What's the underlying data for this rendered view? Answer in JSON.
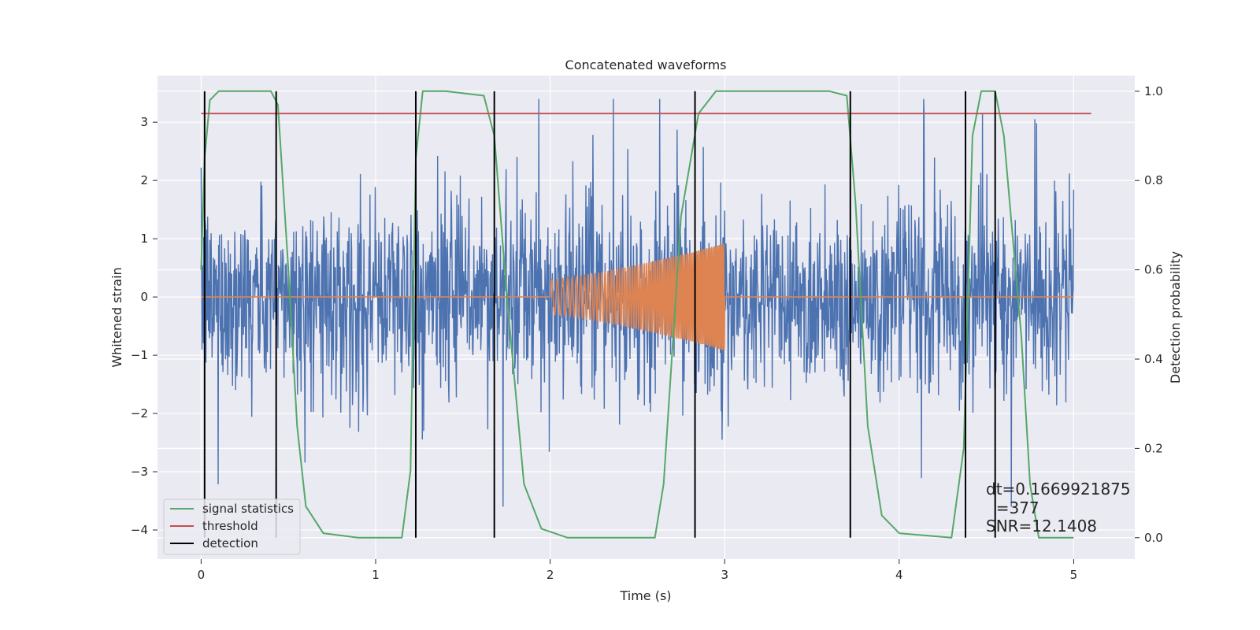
{
  "chart_data": {
    "type": "line",
    "title": "Concatenated waveforms",
    "xlabel": "Time (s)",
    "ylabel": "Whitened strain",
    "y2label": "Detection probability",
    "xlim": [
      -0.25,
      5.35
    ],
    "ylim": [
      -4.5,
      3.8
    ],
    "y2lim": [
      -0.048,
      1.035
    ],
    "xticks": [
      0,
      1,
      2,
      3,
      4,
      5
    ],
    "yticks": [
      -4,
      -3,
      -2,
      -1,
      0,
      1,
      2,
      3
    ],
    "y2ticks": [
      0.0,
      0.2,
      0.4,
      0.6,
      0.8,
      1.0
    ],
    "grid": true,
    "legend_position": "lower-left",
    "series": [
      {
        "name": "",
        "kind": "noise",
        "color": "#4c72b0",
        "x_range": [
          0,
          5
        ],
        "envelope_max": 3.4,
        "envelope_min": -3.6,
        "typical_range": [
          -1.3,
          1.3
        ]
      },
      {
        "name": "",
        "kind": "chirp",
        "color": "#dd8452",
        "x_range": [
          0,
          5
        ],
        "chirp_start": 2.0,
        "chirp_end": 3.0,
        "amp_start": 0.3,
        "amp_end": 0.92,
        "baseline": 0
      },
      {
        "name": "signal statistics",
        "axis": "right",
        "color": "#55a868",
        "x": [
          0.0,
          0.02,
          0.05,
          0.1,
          0.4,
          0.44,
          0.5,
          0.55,
          0.6,
          0.7,
          0.9,
          1.15,
          1.2,
          1.23,
          1.27,
          1.4,
          1.62,
          1.68,
          1.75,
          1.85,
          1.95,
          2.1,
          2.6,
          2.65,
          2.75,
          2.85,
          2.95,
          3.0,
          3.6,
          3.7,
          3.75,
          3.82,
          3.9,
          4.0,
          4.3,
          4.37,
          4.42,
          4.47,
          4.55,
          4.6,
          4.7,
          4.75,
          4.8,
          5.0
        ],
        "y": [
          0.6,
          0.85,
          0.98,
          1.0,
          1.0,
          0.97,
          0.6,
          0.25,
          0.07,
          0.01,
          0.0,
          0.0,
          0.15,
          0.85,
          1.0,
          1.0,
          0.99,
          0.9,
          0.55,
          0.12,
          0.02,
          0.0,
          0.0,
          0.12,
          0.72,
          0.95,
          1.0,
          1.0,
          1.0,
          0.99,
          0.75,
          0.25,
          0.05,
          0.01,
          0.0,
          0.2,
          0.9,
          1.0,
          1.0,
          0.9,
          0.45,
          0.12,
          0.0,
          0.0
        ]
      },
      {
        "name": "threshold",
        "axis": "right",
        "color": "#c44e52",
        "x": [
          0,
          5.1
        ],
        "y": [
          0.95,
          0.95
        ]
      },
      {
        "name": "detection",
        "kind": "vlines",
        "color": "#000000",
        "x": [
          0.02,
          0.43,
          1.23,
          1.68,
          2.83,
          3.72,
          4.38,
          4.55
        ]
      }
    ],
    "annotation": {
      "lines": [
        "dt=0.1669921875",
        "  =377",
        "SNR=12.1408"
      ]
    }
  }
}
